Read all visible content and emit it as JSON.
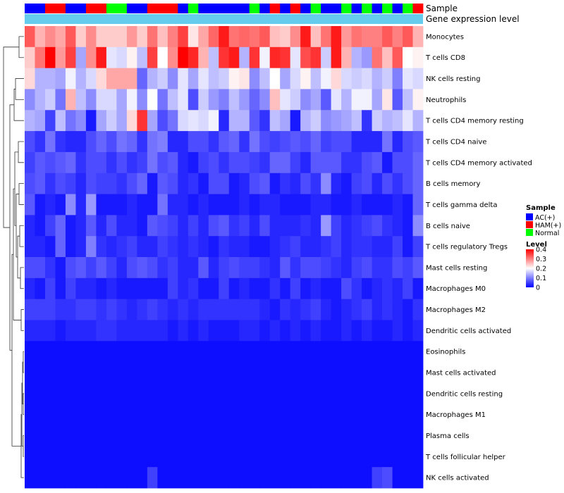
{
  "chart_data": {
    "type": "heatmap",
    "annotations": {
      "sample_track_label": "Sample",
      "gene_track_label": "Gene expression level"
    },
    "rows": [
      "Monocytes",
      "T cells CD8",
      "NK cells resting",
      "Neutrophils",
      "T cells CD4 memory resting",
      "T cells CD4 naive",
      "T cells CD4 memory activated",
      "B cells memory",
      "T cells gamma delta",
      "B cells naive",
      "T cells regulatory  Tregs",
      "Mast cells resting",
      "Macrophages M0",
      "Macrophages M2",
      "Dendritic cells activated",
      "Eosinophils",
      "Mast cells activated",
      "Dendritic cells resting",
      "Macrophages M1",
      "Plasma cells",
      "T cells follicular helper",
      "NK cells activated"
    ],
    "sample_groups": [
      "AC",
      "AC",
      "HAM",
      "HAM",
      "AC",
      "AC",
      "HAM",
      "HAM",
      "Normal",
      "Normal",
      "AC",
      "AC",
      "HAM",
      "HAM",
      "HAM",
      "AC",
      "Normal",
      "AC",
      "AC",
      "AC",
      "AC",
      "AC",
      "Normal",
      "AC",
      "HAM",
      "AC",
      "HAM",
      "AC",
      "Normal",
      "AC",
      "AC",
      "Normal",
      "AC",
      "Normal",
      "AC",
      "Normal",
      "AC",
      "Normal",
      "HAM"
    ],
    "values": [
      [
        0.33,
        0.26,
        0.29,
        0.27,
        0.33,
        0.24,
        0.29,
        0.24,
        0.24,
        0.24,
        0.28,
        0.24,
        0.31,
        0.25,
        0.3,
        0.35,
        0.22,
        0.27,
        0.32,
        0.38,
        0.31,
        0.32,
        0.31,
        0.33,
        0.25,
        0.24,
        0.29,
        0.38,
        0.25,
        0.31,
        0.38,
        0.28,
        0.31,
        0.3,
        0.3,
        0.33,
        0.3,
        0.33,
        0.26
      ],
      [
        0.24,
        0.31,
        0.4,
        0.28,
        0.35,
        0.13,
        0.29,
        0.38,
        0.18,
        0.17,
        0.21,
        0.15,
        0.35,
        0.2,
        0.29,
        0.41,
        0.37,
        0.26,
        0.15,
        0.36,
        0.38,
        0.14,
        0.36,
        0.19,
        0.37,
        0.36,
        0.18,
        0.34,
        0.36,
        0.16,
        0.38,
        0.26,
        0.14,
        0.12,
        0.31,
        0.25,
        0.33,
        0.2,
        0.21
      ],
      [
        0.23,
        0.14,
        0.14,
        0.13,
        0.19,
        0.14,
        0.17,
        0.23,
        0.27,
        0.27,
        0.27,
        0.08,
        0.14,
        0.16,
        0.11,
        0.18,
        0.13,
        0.18,
        0.15,
        0.16,
        0.21,
        0.22,
        0.11,
        0.15,
        0.2,
        0.13,
        0.17,
        0.21,
        0.15,
        0.19,
        0.23,
        0.17,
        0.16,
        0.17,
        0.14,
        0.16,
        0.1,
        0.18,
        0.17
      ],
      [
        0.11,
        0.14,
        0.16,
        0.09,
        0.26,
        0.15,
        0.11,
        0.17,
        0.17,
        0.13,
        0.19,
        0.11,
        0.2,
        0.09,
        0.15,
        0.18,
        0.06,
        0.16,
        0.12,
        0.1,
        0.15,
        0.12,
        0.08,
        0.11,
        0.25,
        0.18,
        0.16,
        0.11,
        0.13,
        0.07,
        0.18,
        0.14,
        0.19,
        0.19,
        0.13,
        0.22,
        0.07,
        0.15,
        0.21
      ],
      [
        0.14,
        0.13,
        0.05,
        0.15,
        0.09,
        0.11,
        0.02,
        0.13,
        0.16,
        0.13,
        0.23,
        0.36,
        0.13,
        0.06,
        0.09,
        0.17,
        0.18,
        0.17,
        0.19,
        0.03,
        0.14,
        0.14,
        0.07,
        0.04,
        0.15,
        0.13,
        0.02,
        0.14,
        0.16,
        0.11,
        0.12,
        0.13,
        0.15,
        0.04,
        0.16,
        0.14,
        0.15,
        0.18,
        0.14
      ],
      [
        0.06,
        0.04,
        0.09,
        0.04,
        0.03,
        0.03,
        0.06,
        0.08,
        0.06,
        0.09,
        0.08,
        0.04,
        0.09,
        0.1,
        0.03,
        0.03,
        0.06,
        0.06,
        0.04,
        0.07,
        0.08,
        0.04,
        0.09,
        0.06,
        0.05,
        0.06,
        0.07,
        0.06,
        0.08,
        0.05,
        0.06,
        0.06,
        0.03,
        0.03,
        0.03,
        0.09,
        0.03,
        0.06,
        0.07
      ],
      [
        0.05,
        0.07,
        0.06,
        0.07,
        0.08,
        0.04,
        0.06,
        0.06,
        0.04,
        0.06,
        0.04,
        0.05,
        0.09,
        0.06,
        0.07,
        0.03,
        0.02,
        0.05,
        0.06,
        0.04,
        0.06,
        0.06,
        0.05,
        0.04,
        0.08,
        0.08,
        0.05,
        0.03,
        0.07,
        0.07,
        0.07,
        0.04,
        0.04,
        0.06,
        0.07,
        0.02,
        0.06,
        0.06,
        0.08
      ],
      [
        0.06,
        0.07,
        0.04,
        0.06,
        0.05,
        0.03,
        0.06,
        0.05,
        0.05,
        0.04,
        0.06,
        0.08,
        0.02,
        0.07,
        0.06,
        0.03,
        0.04,
        0.02,
        0.06,
        0.06,
        0.02,
        0.03,
        0.06,
        0.07,
        0.02,
        0.04,
        0.03,
        0.06,
        0.04,
        0.11,
        0.03,
        0.02,
        0.05,
        0.06,
        0.03,
        0.06,
        0.04,
        0.06,
        0.08
      ],
      [
        0.07,
        0.02,
        0.03,
        0.02,
        0.11,
        0.03,
        0.12,
        0.02,
        0.02,
        0.02,
        0.03,
        0.02,
        0.02,
        0.09,
        0.03,
        0.03,
        0.02,
        0.03,
        0.02,
        0.02,
        0.02,
        0.03,
        0.02,
        0.03,
        0.03,
        0.02,
        0.02,
        0.02,
        0.03,
        0.03,
        0.02,
        0.02,
        0.03,
        0.02,
        0.02,
        0.02,
        0.03,
        0.02,
        0.08
      ],
      [
        0.03,
        0.02,
        0.05,
        0.08,
        0.02,
        0.03,
        0.07,
        0.03,
        0.06,
        0.03,
        0.03,
        0.02,
        0.07,
        0.06,
        0.05,
        0.03,
        0.05,
        0.03,
        0.06,
        0.07,
        0.04,
        0.05,
        0.03,
        0.06,
        0.03,
        0.03,
        0.03,
        0.04,
        0.03,
        0.12,
        0.05,
        0.03,
        0.04,
        0.05,
        0.06,
        0.04,
        0.03,
        0.02,
        0.11
      ],
      [
        0.03,
        0.03,
        0.02,
        0.08,
        0.02,
        0.03,
        0.1,
        0.04,
        0.03,
        0.04,
        0.05,
        0.03,
        0.03,
        0.05,
        0.04,
        0.03,
        0.04,
        0.03,
        0.02,
        0.04,
        0.03,
        0.03,
        0.02,
        0.02,
        0.03,
        0.04,
        0.05,
        0.03,
        0.03,
        0.04,
        0.05,
        0.03,
        0.04,
        0.04,
        0.03,
        0.03,
        0.05,
        0.02,
        0.05
      ],
      [
        0.06,
        0.06,
        0.04,
        0.02,
        0.06,
        0.07,
        0.05,
        0.07,
        0.05,
        0.03,
        0.06,
        0.07,
        0.06,
        0.04,
        0.05,
        0.03,
        0.03,
        0.07,
        0.03,
        0.05,
        0.06,
        0.05,
        0.05,
        0.04,
        0.03,
        0.07,
        0.04,
        0.06,
        0.06,
        0.05,
        0.04,
        0.03,
        0.05,
        0.06,
        0.04,
        0.04,
        0.06,
        0.05,
        0.07
      ],
      [
        0.03,
        0.02,
        0.05,
        0.02,
        0.05,
        0.03,
        0.03,
        0.02,
        0.03,
        0.02,
        0.02,
        0.02,
        0.02,
        0.02,
        0.05,
        0.03,
        0.04,
        0.02,
        0.02,
        0.05,
        0.02,
        0.03,
        0.02,
        0.02,
        0.04,
        0.02,
        0.05,
        0.02,
        0.03,
        0.02,
        0.02,
        0.06,
        0.04,
        0.02,
        0.03,
        0.04,
        0.03,
        0.05,
        0.02
      ],
      [
        0.05,
        0.05,
        0.05,
        0.04,
        0.04,
        0.05,
        0.05,
        0.04,
        0.05,
        0.04,
        0.03,
        0.04,
        0.05,
        0.04,
        0.03,
        0.04,
        0.03,
        0.04,
        0.04,
        0.04,
        0.04,
        0.04,
        0.04,
        0.03,
        0.02,
        0.04,
        0.03,
        0.04,
        0.05,
        0.03,
        0.02,
        0.03,
        0.04,
        0.05,
        0.03,
        0.04,
        0.03,
        0.02,
        0.04
      ],
      [
        0.03,
        0.03,
        0.03,
        0.02,
        0.03,
        0.03,
        0.03,
        0.04,
        0.04,
        0.03,
        0.03,
        0.03,
        0.03,
        0.03,
        0.02,
        0.03,
        0.02,
        0.03,
        0.02,
        0.02,
        0.02,
        0.03,
        0.03,
        0.02,
        0.03,
        0.02,
        0.03,
        0.02,
        0.03,
        0.02,
        0.02,
        0.03,
        0.02,
        0.03,
        0.02,
        0.02,
        0.03,
        0.02,
        0.03
      ],
      [
        0.01,
        0.01,
        0.01,
        0.01,
        0.01,
        0.01,
        0.01,
        0.01,
        0.01,
        0.01,
        0.01,
        0.01,
        0.01,
        0.01,
        0.01,
        0.01,
        0.01,
        0.01,
        0.01,
        0.01,
        0.01,
        0.01,
        0.01,
        0.01,
        0.01,
        0.01,
        0.01,
        0.01,
        0.01,
        0.01,
        0.01,
        0.01,
        0.01,
        0.01,
        0.01,
        0.01,
        0.01,
        0.01,
        0.01
      ],
      [
        0.01,
        0.01,
        0.01,
        0.01,
        0.01,
        0.01,
        0.01,
        0.01,
        0.01,
        0.01,
        0.01,
        0.01,
        0.01,
        0.01,
        0.01,
        0.01,
        0.01,
        0.01,
        0.01,
        0.01,
        0.01,
        0.01,
        0.01,
        0.01,
        0.01,
        0.01,
        0.01,
        0.01,
        0.01,
        0.01,
        0.01,
        0.01,
        0.01,
        0.01,
        0.01,
        0.01,
        0.01,
        0.01,
        0.01
      ],
      [
        0.01,
        0.01,
        0.01,
        0.01,
        0.01,
        0.01,
        0.01,
        0.01,
        0.01,
        0.01,
        0.01,
        0.01,
        0.01,
        0.01,
        0.01,
        0.01,
        0.01,
        0.01,
        0.01,
        0.01,
        0.01,
        0.01,
        0.01,
        0.01,
        0.01,
        0.01,
        0.01,
        0.01,
        0.01,
        0.01,
        0.01,
        0.01,
        0.01,
        0.01,
        0.01,
        0.01,
        0.01,
        0.01,
        0.01
      ],
      [
        0.01,
        0.01,
        0.01,
        0.01,
        0.01,
        0.01,
        0.01,
        0.01,
        0.01,
        0.01,
        0.01,
        0.01,
        0.01,
        0.01,
        0.01,
        0.01,
        0.01,
        0.01,
        0.01,
        0.01,
        0.01,
        0.01,
        0.01,
        0.01,
        0.01,
        0.01,
        0.01,
        0.01,
        0.01,
        0.01,
        0.01,
        0.01,
        0.01,
        0.01,
        0.01,
        0.01,
        0.01,
        0.01,
        0.01
      ],
      [
        0.01,
        0.01,
        0.01,
        0.01,
        0.01,
        0.01,
        0.01,
        0.01,
        0.01,
        0.01,
        0.01,
        0.01,
        0.01,
        0.01,
        0.01,
        0.01,
        0.01,
        0.01,
        0.01,
        0.01,
        0.01,
        0.01,
        0.01,
        0.01,
        0.01,
        0.01,
        0.01,
        0.01,
        0.01,
        0.01,
        0.01,
        0.01,
        0.01,
        0.01,
        0.01,
        0.01,
        0.01,
        0.01,
        0.01
      ],
      [
        0.01,
        0.01,
        0.01,
        0.01,
        0.01,
        0.01,
        0.01,
        0.01,
        0.01,
        0.01,
        0.01,
        0.01,
        0.01,
        0.01,
        0.01,
        0.01,
        0.01,
        0.01,
        0.01,
        0.01,
        0.01,
        0.01,
        0.01,
        0.01,
        0.01,
        0.01,
        0.01,
        0.01,
        0.01,
        0.01,
        0.01,
        0.01,
        0.01,
        0.01,
        0.01,
        0.01,
        0.01,
        0.01,
        0.01
      ],
      [
        0.01,
        0.01,
        0.01,
        0.01,
        0.01,
        0.01,
        0.01,
        0.01,
        0.01,
        0.01,
        0.01,
        0.01,
        0.05,
        0.01,
        0.01,
        0.01,
        0.01,
        0.01,
        0.01,
        0.01,
        0.01,
        0.01,
        0.01,
        0.01,
        0.01,
        0.01,
        0.01,
        0.01,
        0.01,
        0.01,
        0.01,
        0.01,
        0.01,
        0.01,
        0.05,
        0.06,
        0.01,
        0.01,
        0.01
      ]
    ],
    "legend": {
      "sample": {
        "title": "Sample",
        "items": [
          {
            "group": "AC",
            "label": "AC(+)",
            "color": "#0000ff"
          },
          {
            "group": "HAM",
            "label": "HAM(+)",
            "color": "#ff0000"
          },
          {
            "group": "Normal",
            "label": "Normal",
            "color": "#00ff00"
          }
        ]
      },
      "level": {
        "title": "Level",
        "range": [
          0,
          0.4
        ],
        "ticks": [
          "0.4",
          "0.3",
          "0.2",
          "0.1",
          "0"
        ],
        "tick_values": [
          0.4,
          0.3,
          0.2,
          0.1,
          0
        ],
        "colors": [
          "#0000ff",
          "#ffffff",
          "#ff0000"
        ]
      }
    },
    "gene_track_color": "#66ccee"
  }
}
